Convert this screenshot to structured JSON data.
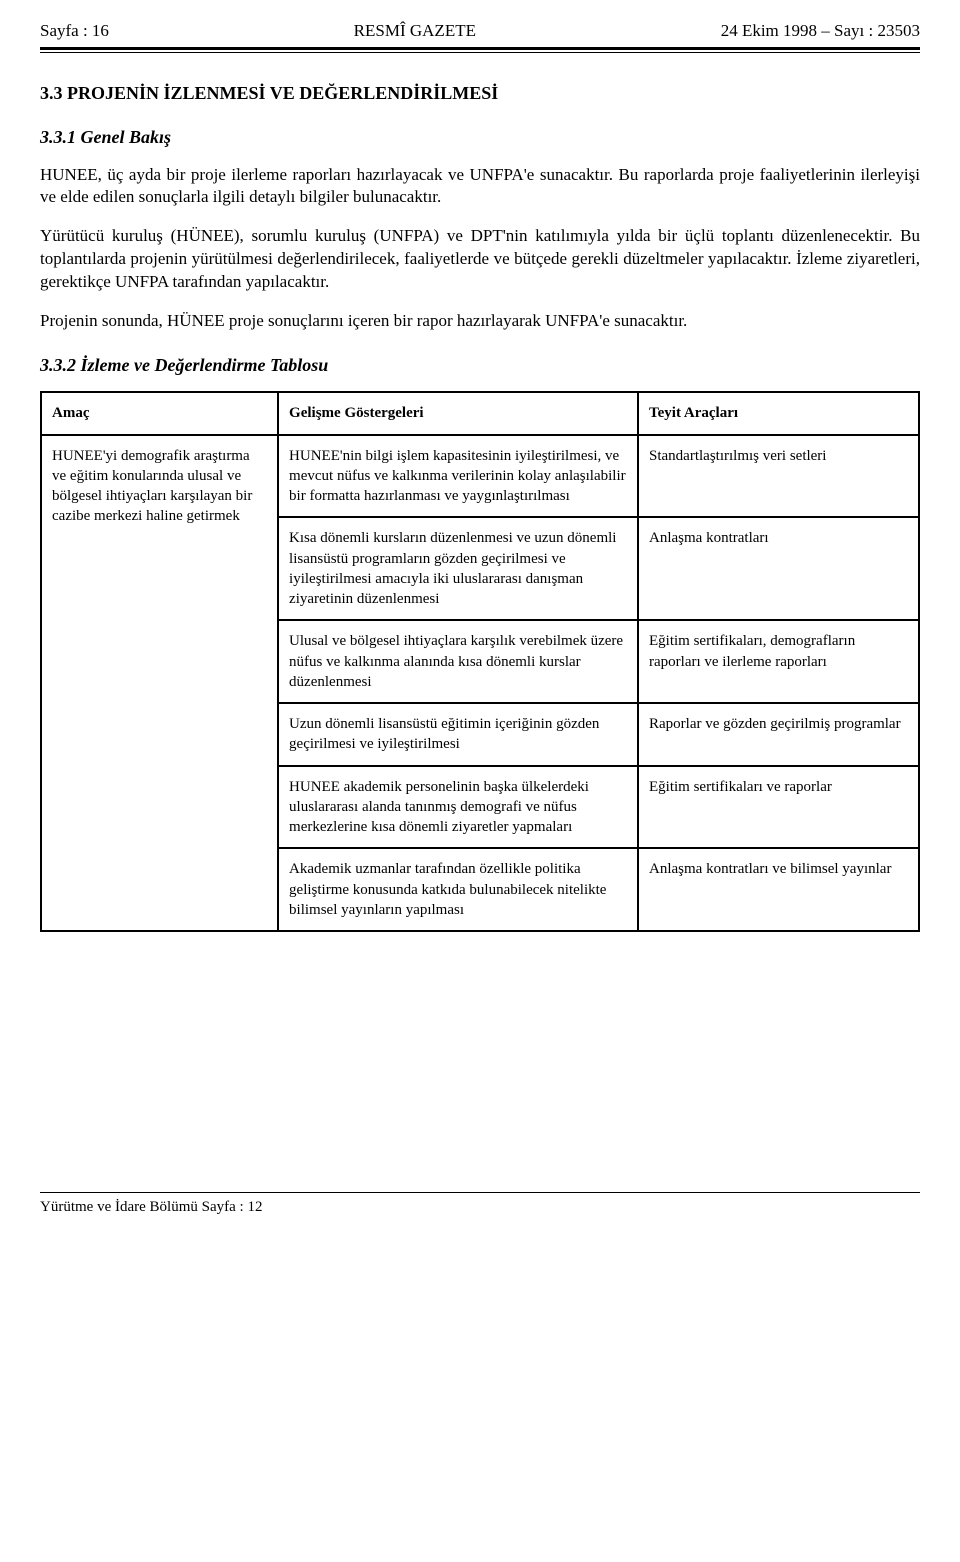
{
  "header": {
    "left": "Sayfa : 16",
    "center": "RESMÎ GAZETE",
    "right": "24 Ekim 1998 – Sayı : 23503"
  },
  "section33": {
    "number_title": "3.3   PROJENİN İZLENMESİ VE DEĞERLENDİRİLMESİ"
  },
  "section331": {
    "number_title": "3.3.1   Genel Bakış",
    "p1": "HUNEE, üç ayda bir proje ilerleme raporları hazırlayacak ve UNFPA'e sunacaktır. Bu raporlarda proje faaliyetlerinin ilerleyişi ve elde edilen sonuçlarla ilgili detaylı bilgiler bulunacaktır.",
    "p2": "Yürütücü kuruluş (HÜNEE), sorumlu kuruluş (UNFPA) ve DPT'nin katılımıyla yılda bir üçlü toplantı düzenlenecektir. Bu toplantılarda projenin yürütülmesi değerlendirilecek, faaliyetlerde ve bütçede gerekli düzeltmeler yapılacaktır. İzleme ziyaretleri, gerektikçe UNFPA tarafından yapılacaktır.",
    "p3": "Projenin sonunda, HÜNEE proje sonuçlarını içeren bir rapor hazırlayarak UNFPA'e sunacaktır."
  },
  "section332": {
    "number_title": "3.3.2   İzleme ve Değerlendirme Tablosu"
  },
  "table": {
    "headers": {
      "amac": "Amaç",
      "gosterge": "Gelişme Göstergeleri",
      "teyit": "Teyit Araçları"
    },
    "amac_cell": "HUNEE'yi demografik araştırma ve eğitim konularında ulusal ve bölgesel ihtiyaçları karşılayan bir cazibe merkezi haline getirmek",
    "rows": [
      {
        "gosterge": "HUNEE'nin bilgi işlem kapasitesinin iyileştirilmesi, ve mevcut nüfus ve kalkınma verilerinin kolay anlaşılabilir bir formatta hazırlanması ve yaygınlaştırılması",
        "teyit": "Standartlaştırılmış veri setleri"
      },
      {
        "gosterge": "Kısa dönemli kursların düzenlenmesi ve uzun dönemli lisansüstü programların gözden geçirilmesi ve iyileştirilmesi amacıyla iki uluslararası danışman ziyaretinin düzenlenmesi",
        "teyit": "Anlaşma kontratları"
      },
      {
        "gosterge": "Ulusal ve bölgesel ihtiyaçlara karşılık verebilmek üzere nüfus ve kalkınma alanında kısa dönemli kurslar düzenlenmesi",
        "teyit": "Eğitim sertifikaları, demografların raporları ve ilerleme raporları"
      },
      {
        "gosterge": "Uzun dönemli lisansüstü eğitimin içeriğinin gözden geçirilmesi ve iyileştirilmesi",
        "teyit": "Raporlar ve gözden geçirilmiş programlar"
      },
      {
        "gosterge": "HUNEE akademik personelinin başka ülkelerdeki uluslararası alanda tanınmış demografi ve nüfus merkezlerine kısa dönemli ziyaretler yapmaları",
        "teyit": "Eğitim sertifikaları ve raporlar"
      },
      {
        "gosterge": "Akademik uzmanlar tarafından özellikle politika geliştirme konusunda katkıda bulunabilecek nitelikte bilimsel yayınların yapılması",
        "teyit": "Anlaşma kontratları ve bilimsel yayınlar"
      }
    ]
  },
  "footer": {
    "text": "Yürütme ve İdare Bölümü Sayfa : 12"
  }
}
